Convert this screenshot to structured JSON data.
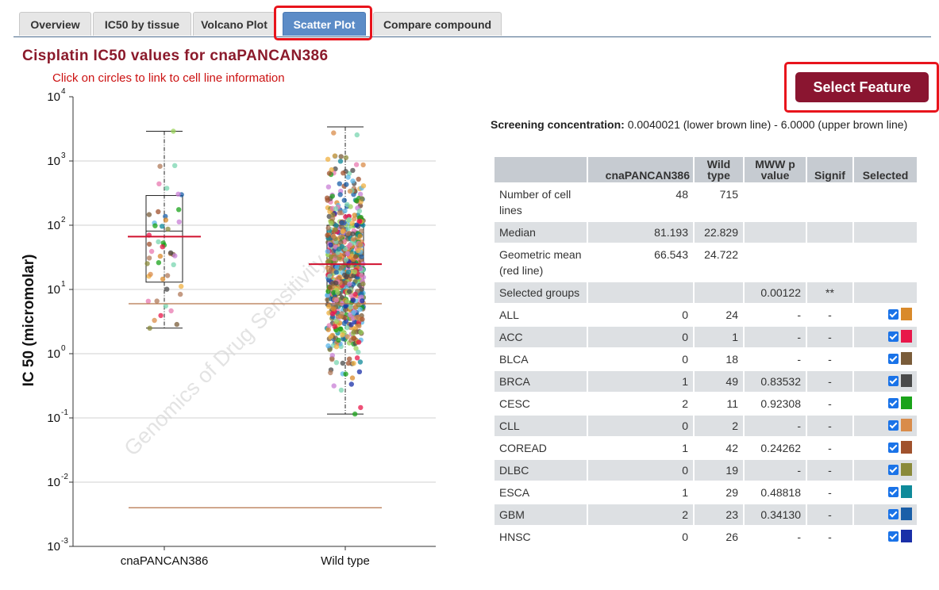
{
  "tabs": [
    {
      "label": "Overview",
      "active": false
    },
    {
      "label": "IC50 by tissue",
      "active": false
    },
    {
      "label": "Volcano Plot",
      "active": false
    },
    {
      "label": "Scatter Plot",
      "active": true
    },
    {
      "label": "Compare compound",
      "active": false
    }
  ],
  "page": {
    "title": "Cisplatin IC50 values for cnaPANCAN386",
    "hint": "Click on circles to link to cell line information",
    "select_feature": "Select Feature",
    "watermark": "Genomics of Drug Sensitivity"
  },
  "screening": {
    "label": "Screening concentration:",
    "text": " 0.0040021 (lower brown line) - 6.0000 (upper brown line)"
  },
  "stats_table": {
    "headers": [
      "",
      "cnaPANCAN386",
      "Wild type",
      "MWW p value",
      "Signif",
      "Selected"
    ],
    "summary_rows": [
      {
        "label": "Number of cell lines",
        "a": "48",
        "b": "715",
        "p": "",
        "s": ""
      },
      {
        "label": "Median",
        "a": "81.193",
        "b": "22.829",
        "p": "",
        "s": ""
      },
      {
        "label": "Geometric mean (red line)",
        "a": "66.543",
        "b": "24.722",
        "p": "",
        "s": ""
      },
      {
        "label": "Selected groups",
        "a": "",
        "b": "",
        "p": "0.00122",
        "s": "**"
      }
    ],
    "tissue_rows": [
      {
        "label": "ALL",
        "a": "0",
        "b": "24",
        "p": "-",
        "s": "-",
        "color": "#d98a2b"
      },
      {
        "label": "ACC",
        "a": "0",
        "b": "1",
        "p": "-",
        "s": "-",
        "color": "#e8174a"
      },
      {
        "label": "BLCA",
        "a": "0",
        "b": "18",
        "p": "-",
        "s": "-",
        "color": "#7a5c3a"
      },
      {
        "label": "BRCA",
        "a": "1",
        "b": "49",
        "p": "0.83532",
        "s": "-",
        "color": "#4a4a4a"
      },
      {
        "label": "CESC",
        "a": "2",
        "b": "11",
        "p": "0.92308",
        "s": "-",
        "color": "#1aa31a"
      },
      {
        "label": "CLL",
        "a": "0",
        "b": "2",
        "p": "-",
        "s": "-",
        "color": "#d98c4a"
      },
      {
        "label": "COREAD",
        "a": "1",
        "b": "42",
        "p": "0.24262",
        "s": "-",
        "color": "#a0522d"
      },
      {
        "label": "DLBC",
        "a": "0",
        "b": "19",
        "p": "-",
        "s": "-",
        "color": "#8a8a3a"
      },
      {
        "label": "ESCA",
        "a": "1",
        "b": "29",
        "p": "0.48818",
        "s": "-",
        "color": "#0f8a9a"
      },
      {
        "label": "GBM",
        "a": "2",
        "b": "23",
        "p": "0.34130",
        "s": "-",
        "color": "#1a5fa8"
      },
      {
        "label": "HNSC",
        "a": "0",
        "b": "26",
        "p": "-",
        "s": "-",
        "color": "#1a2fa8"
      }
    ]
  },
  "chart_data": {
    "type": "scatter",
    "ylabel": "IC 50 (micromolar)",
    "y_scale": "log",
    "ylim": [
      0.001,
      10000
    ],
    "y_ticks": [
      {
        "base": "10",
        "exp": "4"
      },
      {
        "base": "10",
        "exp": "3"
      },
      {
        "base": "10",
        "exp": "2"
      },
      {
        "base": "10",
        "exp": "1"
      },
      {
        "base": "10",
        "exp": "0"
      },
      {
        "base": "10",
        "exp": "-1"
      },
      {
        "base": "10",
        "exp": "-2"
      },
      {
        "base": "10",
        "exp": "-3"
      }
    ],
    "categories": [
      "cnaPANCAN386",
      "Wild type"
    ],
    "groups": [
      {
        "name": "cnaPANCAN386",
        "n": 48,
        "whisker_low": 2.5,
        "q1": 13,
        "median": 81.193,
        "q3": 290,
        "whisker_high": 2900,
        "geomean": 66.543
      },
      {
        "name": "Wild type",
        "n": 715,
        "whisker_low": 0.115,
        "q1": 5.5,
        "median": 22.829,
        "q3": 100,
        "whisker_high": 3400,
        "geomean": 24.722
      }
    ],
    "screening_lines": [
      6.0,
      0.0040021
    ]
  }
}
